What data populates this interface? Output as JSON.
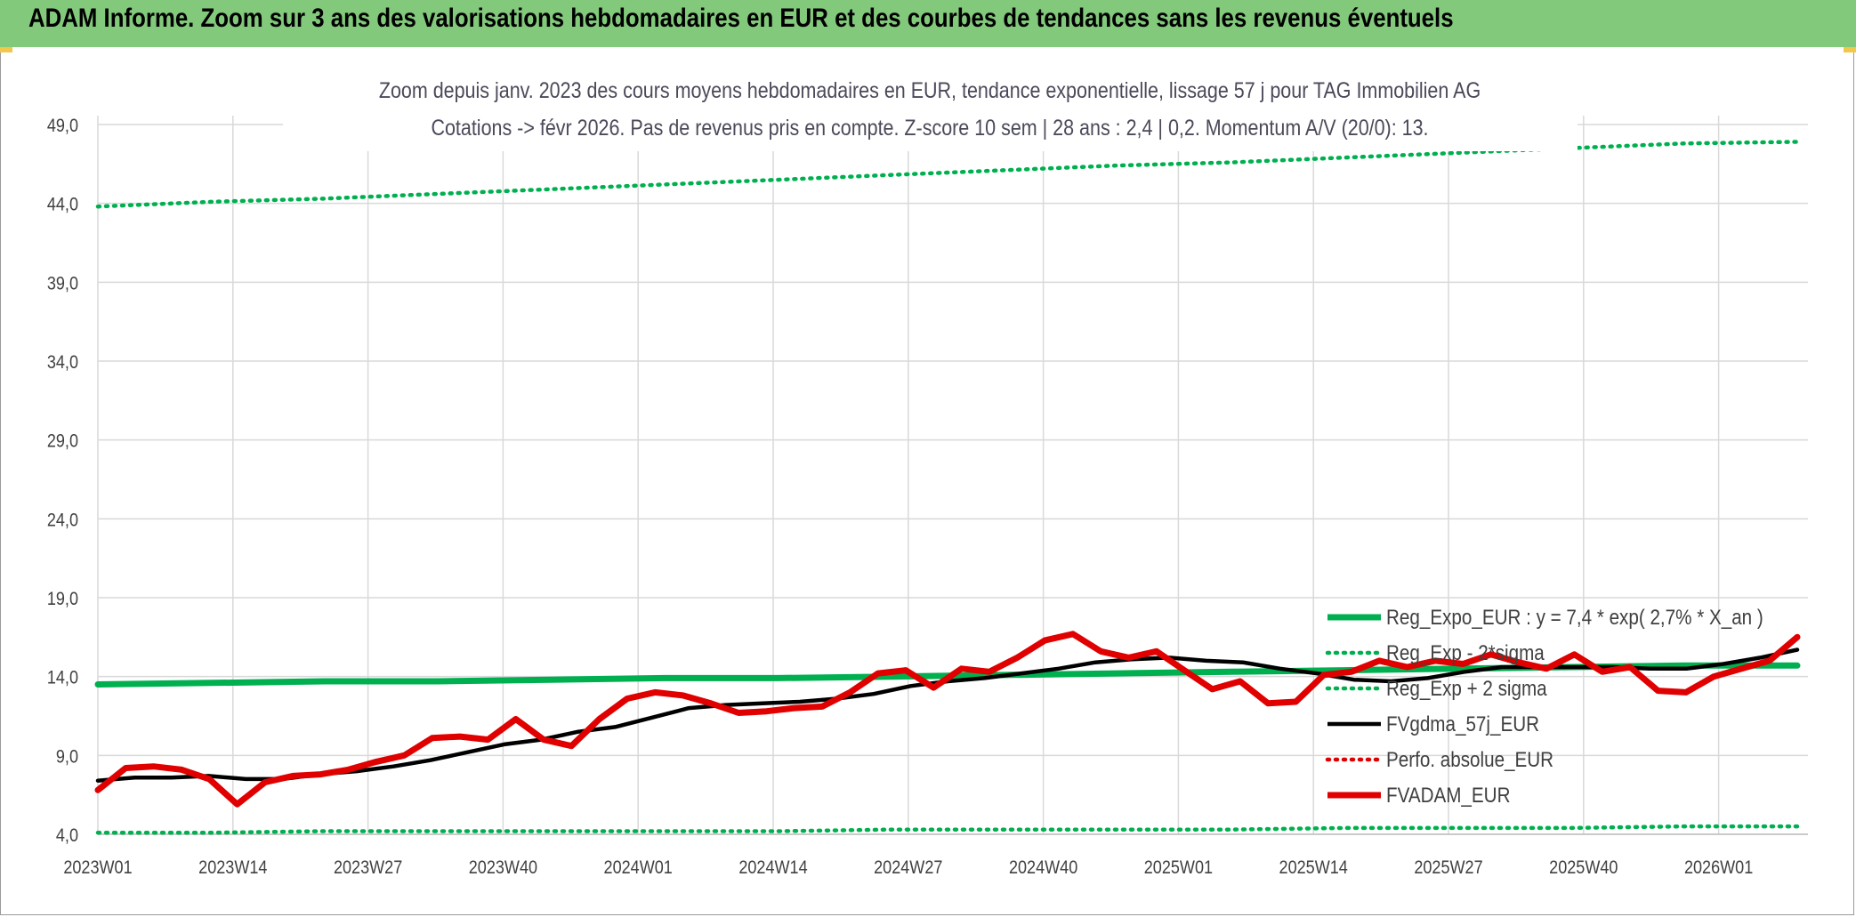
{
  "header": {
    "title": "ADAM Informe. Zoom sur 3 ans des valorisations hebdomadaires en EUR et des courbes de tendances sans les revenus éventuels"
  },
  "chart_data": {
    "type": "line",
    "title": "Zoom depuis janv. 2023 des cours moyens hebdomadaires en EUR, tendance exponentielle, lissage 57 j pour TAG Immobilien AG",
    "subtitle": "Cotations -> févr 2026. Pas de revenus pris en compte. Z-score 10 sem | 28 ans : 2,4 | 0,2. Momentum A/V (20/0): 13.",
    "ylim": [
      4,
      49
    ],
    "yticks": [
      "4,0",
      "9,0",
      "14,0",
      "19,0",
      "24,0",
      "29,0",
      "34,0",
      "39,0",
      "44,0",
      "49,0"
    ],
    "yticks_values": [
      4,
      9,
      14,
      19,
      24,
      29,
      34,
      39,
      44,
      49
    ],
    "xticks": [
      "2023W01",
      "2023W14",
      "2023W27",
      "2023W40",
      "2024W01",
      "2024W14",
      "2024W27",
      "2024W40",
      "2025W01",
      "2025W14",
      "2025W27",
      "2025W40",
      "2026W01"
    ],
    "grid": true,
    "legend_position": "bottom-right",
    "series": [
      {
        "name": "Reg_Expo_EUR : y = 7,4 * exp( 2,7% *  X_an )",
        "color": "#00b050",
        "style": "solid-thick",
        "values": [
          13.5,
          13.6,
          13.7,
          13.7,
          13.8,
          13.9,
          13.9,
          14.0,
          14.1,
          14.2,
          14.3,
          14.4,
          14.5,
          14.6,
          14.7,
          14.7
        ]
      },
      {
        "name": "Reg_Exp - 2*sigma",
        "color": "#00b050",
        "style": "dotted",
        "values": [
          4.1,
          4.1,
          4.2,
          4.2,
          4.2,
          4.2,
          4.2,
          4.3,
          4.3,
          4.3,
          4.3,
          4.4,
          4.4,
          4.4,
          4.5,
          4.5
        ]
      },
      {
        "name": "Reg_Exp + 2 sigma",
        "color": "#00b050",
        "style": "dotted",
        "values": [
          43.8,
          44.1,
          44.3,
          44.6,
          44.9,
          45.2,
          45.5,
          45.8,
          46.1,
          46.4,
          46.6,
          46.9,
          47.2,
          47.5,
          47.8,
          47.9
        ]
      },
      {
        "name": "FVgdma_57j_EUR",
        "color": "#000000",
        "style": "solid",
        "values": [
          7.4,
          7.6,
          7.6,
          7.7,
          7.5,
          7.5,
          7.8,
          8.0,
          8.3,
          8.7,
          9.2,
          9.7,
          10.0,
          10.5,
          10.8,
          11.4,
          12.0,
          12.2,
          12.3,
          12.4,
          12.6,
          12.9,
          13.4,
          13.7,
          13.9,
          14.2,
          14.5,
          14.9,
          15.1,
          15.2,
          15.0,
          14.9,
          14.5,
          14.2,
          13.8,
          13.7,
          13.9,
          14.3,
          14.6,
          14.6,
          14.6,
          14.6,
          14.5,
          14.5,
          14.8,
          15.2,
          15.7
        ]
      },
      {
        "name": "Perfo. absolue_EUR",
        "color": "#e00000",
        "style": "dotted",
        "values": []
      },
      {
        "name": "FVADAM_EUR",
        "color": "#e00000",
        "style": "solid-thick",
        "values": [
          6.8,
          8.2,
          8.3,
          8.1,
          7.5,
          5.9,
          7.3,
          7.7,
          7.8,
          8.1,
          8.6,
          9.0,
          10.1,
          10.2,
          10.0,
          11.3,
          10.0,
          9.6,
          11.3,
          12.6,
          13.0,
          12.8,
          12.3,
          11.7,
          11.8,
          12.0,
          12.1,
          13.0,
          14.2,
          14.4,
          13.3,
          14.5,
          14.3,
          15.2,
          16.3,
          16.7,
          15.6,
          15.2,
          15.6,
          14.4,
          13.2,
          13.7,
          12.3,
          12.4,
          14.1,
          14.3,
          15.0,
          14.6,
          15.0,
          14.8,
          15.4,
          14.9,
          14.5,
          15.4,
          14.3,
          14.6,
          13.1,
          13.0,
          14.0,
          14.5,
          15.0,
          16.5
        ]
      }
    ]
  }
}
